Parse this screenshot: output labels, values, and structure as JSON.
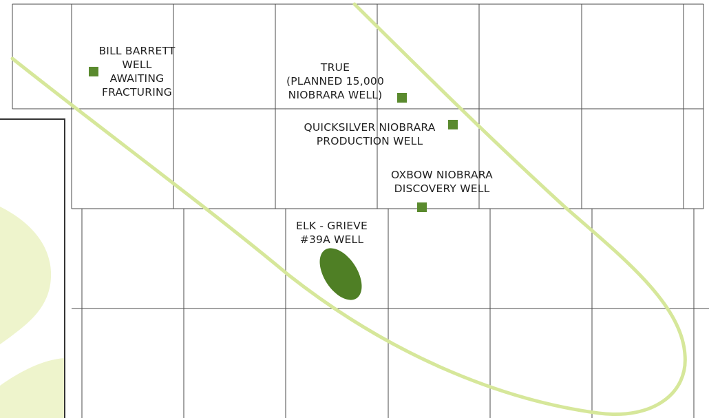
{
  "map": {
    "colors": {
      "background": "#ffffff",
      "grid_line": "#4a4a4a",
      "trend_line": "#d6e79a",
      "well_marker": "#5a8a2e",
      "field_fill": "#4f7f25",
      "inset_fill": "#eef4cc",
      "text": "#222222"
    },
    "wells": [
      {
        "id": "bill-barrett",
        "lines": [
          "BILL BARRETT",
          "WELL",
          "AWAITING",
          "FRACTURING"
        ],
        "marker": "square-icon"
      },
      {
        "id": "true",
        "lines": [
          "TRUE",
          "(PLANNED 15,000",
          "NIOBRARA WELL)"
        ],
        "marker": "square-icon"
      },
      {
        "id": "quicksilver",
        "lines": [
          "QUICKSILVER NIOBRARA",
          "PRODUCTION WELL"
        ],
        "marker": "square-icon"
      },
      {
        "id": "oxbow",
        "lines": [
          "OXBOW NIOBRARA",
          "DISCOVERY WELL"
        ],
        "marker": "square-icon"
      },
      {
        "id": "elk-grieve",
        "lines": [
          "ELK - GRIEVE",
          "#39A WELL"
        ],
        "marker": "oval-field-icon"
      }
    ]
  }
}
